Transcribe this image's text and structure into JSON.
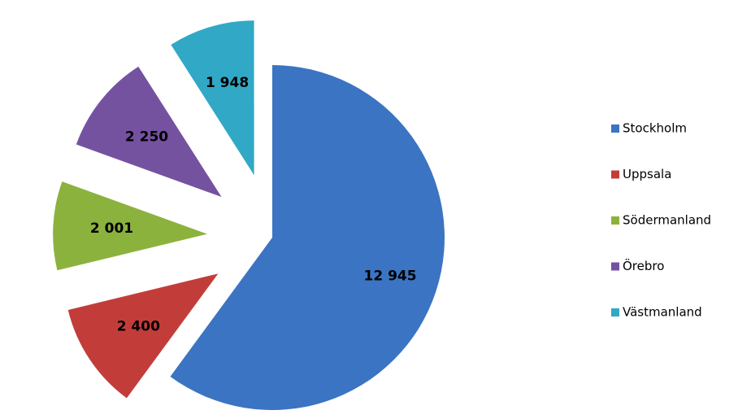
{
  "chart_data": {
    "type": "pie",
    "categories": [
      "Stockholm",
      "Uppsala",
      "Södermanland",
      "Örebro",
      "Västmanland"
    ],
    "values": [
      12945,
      2400,
      2001,
      2250,
      1948
    ],
    "value_labels": [
      "12 945",
      "2 400",
      "2 001",
      "2 250",
      "1 948"
    ],
    "colors": [
      "#3b74c2",
      "#c23d3a",
      "#8cb23e",
      "#7452a0",
      "#31a8c6"
    ],
    "legend": "right"
  }
}
